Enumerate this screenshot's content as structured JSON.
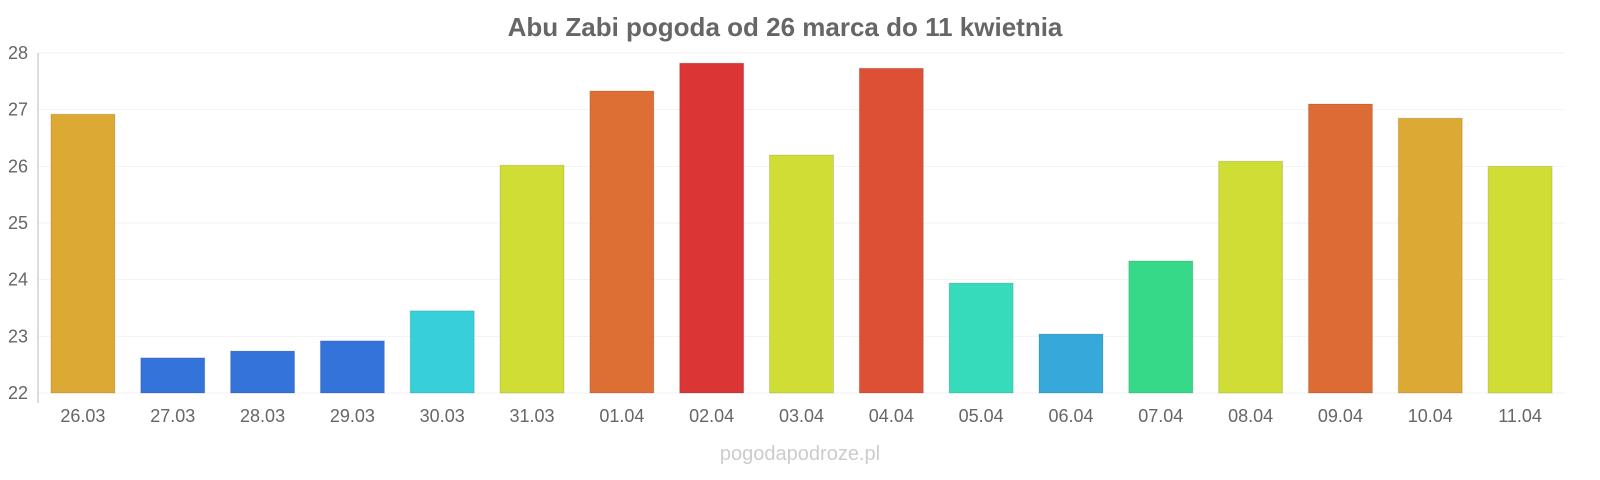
{
  "chart_data": {
    "type": "bar",
    "title": "Abu Zabi pogoda od 26 marca do 11 kwietnia",
    "xlabel": "",
    "ylabel": "",
    "ylim": [
      22,
      28
    ],
    "yticks": [
      "22",
      "23",
      "24",
      "25",
      "26",
      "27",
      "28"
    ],
    "grid": true,
    "categories": [
      "26.03",
      "27.03",
      "28.03",
      "29.03",
      "30.03",
      "31.03",
      "01.04",
      "02.04",
      "03.04",
      "04.04",
      "05.04",
      "06.04",
      "07.04",
      "08.04",
      "09.04",
      "10.04",
      "11.04"
    ],
    "values": [
      26.92,
      22.62,
      22.74,
      22.92,
      23.45,
      26.02,
      27.33,
      27.82,
      26.2,
      27.73,
      23.94,
      23.04,
      24.33,
      26.09,
      27.1,
      26.85,
      26.0
    ],
    "colors": [
      "#dda935",
      "#3474da",
      "#3474da",
      "#3474da",
      "#36cfda",
      "#cfdd35",
      "#dd6f35",
      "#dc3535",
      "#cfdd35",
      "#dd5035",
      "#36dbbb",
      "#36a8da",
      "#35d987",
      "#cfdd35",
      "#dd6b35",
      "#dda935",
      "#cfdd35"
    ]
  },
  "footer": "pogodapodroze.pl"
}
